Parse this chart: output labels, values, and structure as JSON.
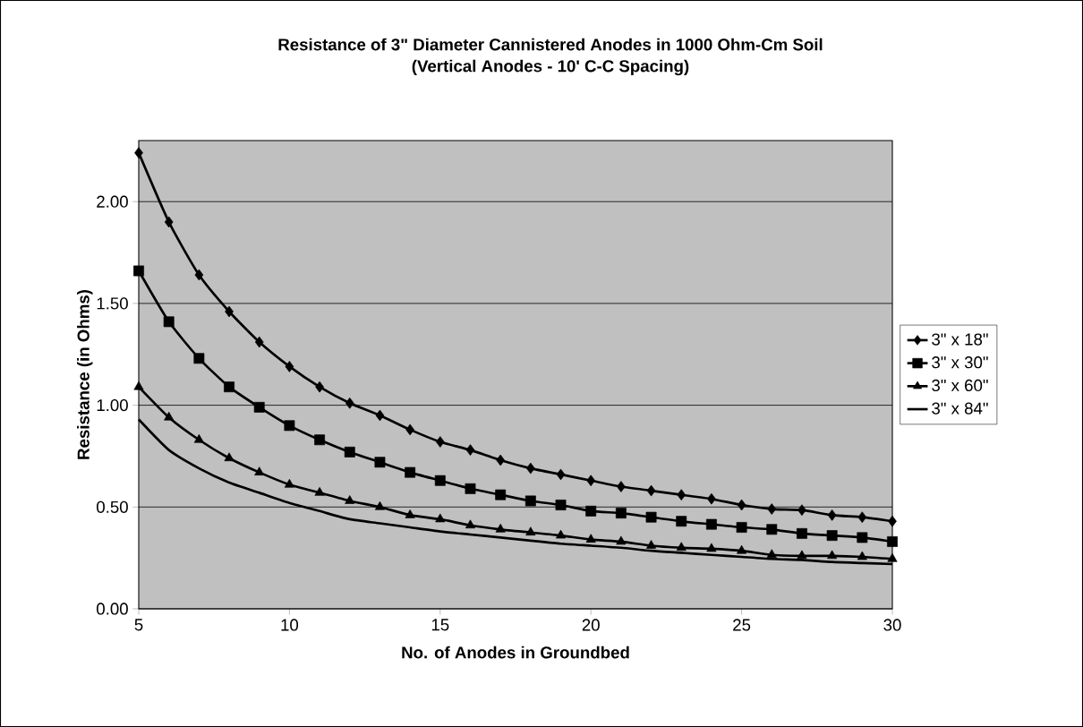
{
  "chart_data": {
    "type": "line",
    "title": "Resistance of 3\" Diameter Cannistered Anodes in 1000 Ohm-Cm Soil",
    "subtitle": "(Vertical Anodes - 10' C-C Spacing)",
    "xlabel": "No. of Anodes in Groundbed",
    "ylabel": "Resistance (in Ohms)",
    "x": [
      5,
      6,
      7,
      8,
      9,
      10,
      11,
      12,
      13,
      14,
      15,
      16,
      17,
      18,
      19,
      20,
      21,
      22,
      23,
      24,
      25,
      26,
      27,
      28,
      29,
      30
    ],
    "series": [
      {
        "name": "3\" x 18\"",
        "color": "#000000",
        "marker": "diamond",
        "values": [
          2.24,
          1.9,
          1.64,
          1.46,
          1.31,
          1.19,
          1.09,
          1.01,
          0.95,
          0.88,
          0.82,
          0.78,
          0.73,
          0.69,
          0.66,
          0.63,
          0.6,
          0.58,
          0.56,
          0.54,
          0.51,
          0.49,
          0.485,
          0.46,
          0.45,
          0.43
        ]
      },
      {
        "name": "3\" x 30\"",
        "color": "#000000",
        "marker": "square",
        "values": [
          1.66,
          1.41,
          1.23,
          1.09,
          0.99,
          0.9,
          0.83,
          0.77,
          0.72,
          0.67,
          0.63,
          0.59,
          0.56,
          0.53,
          0.51,
          0.48,
          0.47,
          0.45,
          0.43,
          0.415,
          0.4,
          0.39,
          0.37,
          0.36,
          0.35,
          0.33
        ]
      },
      {
        "name": "3\" x 60\"",
        "color": "#000000",
        "marker": "triangle",
        "values": [
          1.09,
          0.94,
          0.83,
          0.74,
          0.67,
          0.61,
          0.57,
          0.53,
          0.5,
          0.46,
          0.44,
          0.41,
          0.39,
          0.375,
          0.36,
          0.34,
          0.33,
          0.31,
          0.3,
          0.295,
          0.285,
          0.265,
          0.26,
          0.26,
          0.255,
          0.245
        ]
      },
      {
        "name": "3\" x 84\"",
        "color": "#000000",
        "marker": "none",
        "values": [
          0.93,
          0.78,
          0.69,
          0.62,
          0.57,
          0.52,
          0.48,
          0.44,
          0.42,
          0.4,
          0.38,
          0.365,
          0.35,
          0.335,
          0.32,
          0.31,
          0.3,
          0.285,
          0.275,
          0.265,
          0.255,
          0.245,
          0.24,
          0.23,
          0.225,
          0.22
        ]
      }
    ],
    "xlim": [
      5,
      30
    ],
    "xticks": [
      5,
      10,
      15,
      20,
      25,
      30
    ],
    "ylim": [
      0,
      2.3
    ],
    "yticks": [
      {
        "value": 0,
        "label": "0.00"
      },
      {
        "value": 0.5,
        "label": "0.50"
      },
      {
        "value": 1,
        "label": "1.00"
      },
      {
        "value": 1.5,
        "label": "1.50"
      },
      {
        "value": 2,
        "label": "2.00"
      }
    ],
    "grid": "y",
    "legend": "right",
    "line_style": "solid"
  }
}
